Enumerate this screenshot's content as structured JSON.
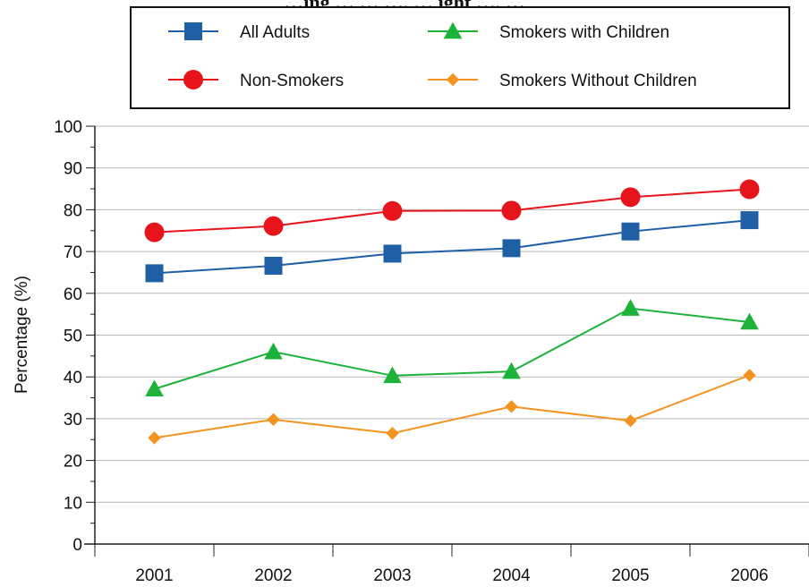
{
  "chart_data": {
    "type": "line",
    "title": "…ing … … …, … ight …, …",
    "ylabel": "Percentage (%)",
    "xlabel": "",
    "categories": [
      "2001",
      "2002",
      "2003",
      "2004",
      "2005",
      "2006"
    ],
    "ylim": [
      0,
      100
    ],
    "yticks": [
      0,
      10,
      20,
      30,
      40,
      50,
      60,
      70,
      80,
      90,
      100
    ],
    "grid": "horizontal",
    "legend_position": "top",
    "series": [
      {
        "name": "All Adults",
        "color": "#1f5fa6",
        "marker": "square",
        "values": [
          64.8,
          66.6,
          69.5,
          70.8,
          74.8,
          77.5
        ]
      },
      {
        "name": "Non-Smokers",
        "color": "#e8141b",
        "marker": "circle",
        "values": [
          74.6,
          76.1,
          79.7,
          79.8,
          83.0,
          84.9
        ]
      },
      {
        "name": "Smokers with Children",
        "color": "#1db33a",
        "marker": "triangle",
        "values": [
          37.1,
          46.0,
          40.3,
          41.3,
          56.4,
          53.1
        ]
      },
      {
        "name": "Smokers Without Children",
        "color": "#f2941f",
        "marker": "diamond",
        "values": [
          25.4,
          29.8,
          26.5,
          32.9,
          29.5,
          40.4
        ]
      }
    ]
  }
}
